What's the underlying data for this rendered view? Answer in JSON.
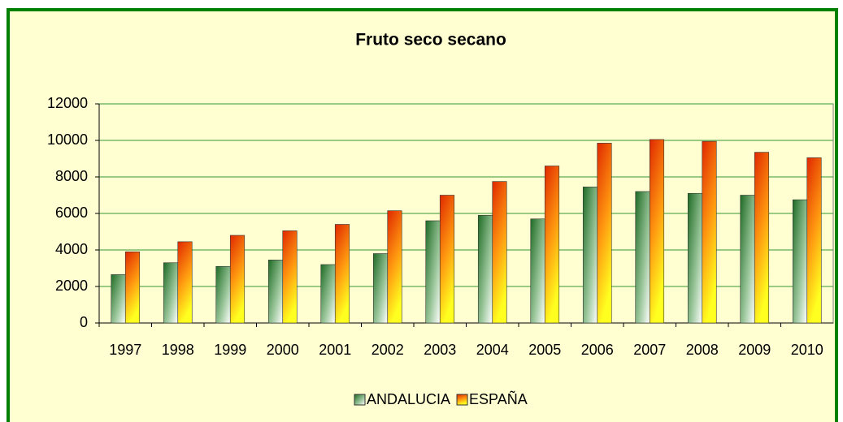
{
  "chart_data": {
    "type": "bar",
    "title": "Fruto seco secano",
    "categories": [
      "1997",
      "1998",
      "1999",
      "2000",
      "2001",
      "2002",
      "2003",
      "2004",
      "2005",
      "2006",
      "2007",
      "2008",
      "2009",
      "2010"
    ],
    "series": [
      {
        "name": "ANDALUCIA",
        "color": "#2e7d32",
        "values": [
          2650,
          3300,
          3100,
          3450,
          3200,
          3800,
          5600,
          5900,
          5700,
          7450,
          7200,
          7100,
          7000,
          6750
        ]
      },
      {
        "name": "ESPAÑA",
        "color": "#e83a00",
        "values": [
          3900,
          4450,
          4800,
          5050,
          5400,
          6150,
          7000,
          7750,
          8600,
          9850,
          10050,
          9950,
          9350,
          9050
        ]
      }
    ],
    "ylim": [
      0,
      12000
    ],
    "yticks": [
      0,
      2000,
      4000,
      6000,
      8000,
      10000,
      12000
    ],
    "grid": true,
    "legend": "bottom"
  }
}
